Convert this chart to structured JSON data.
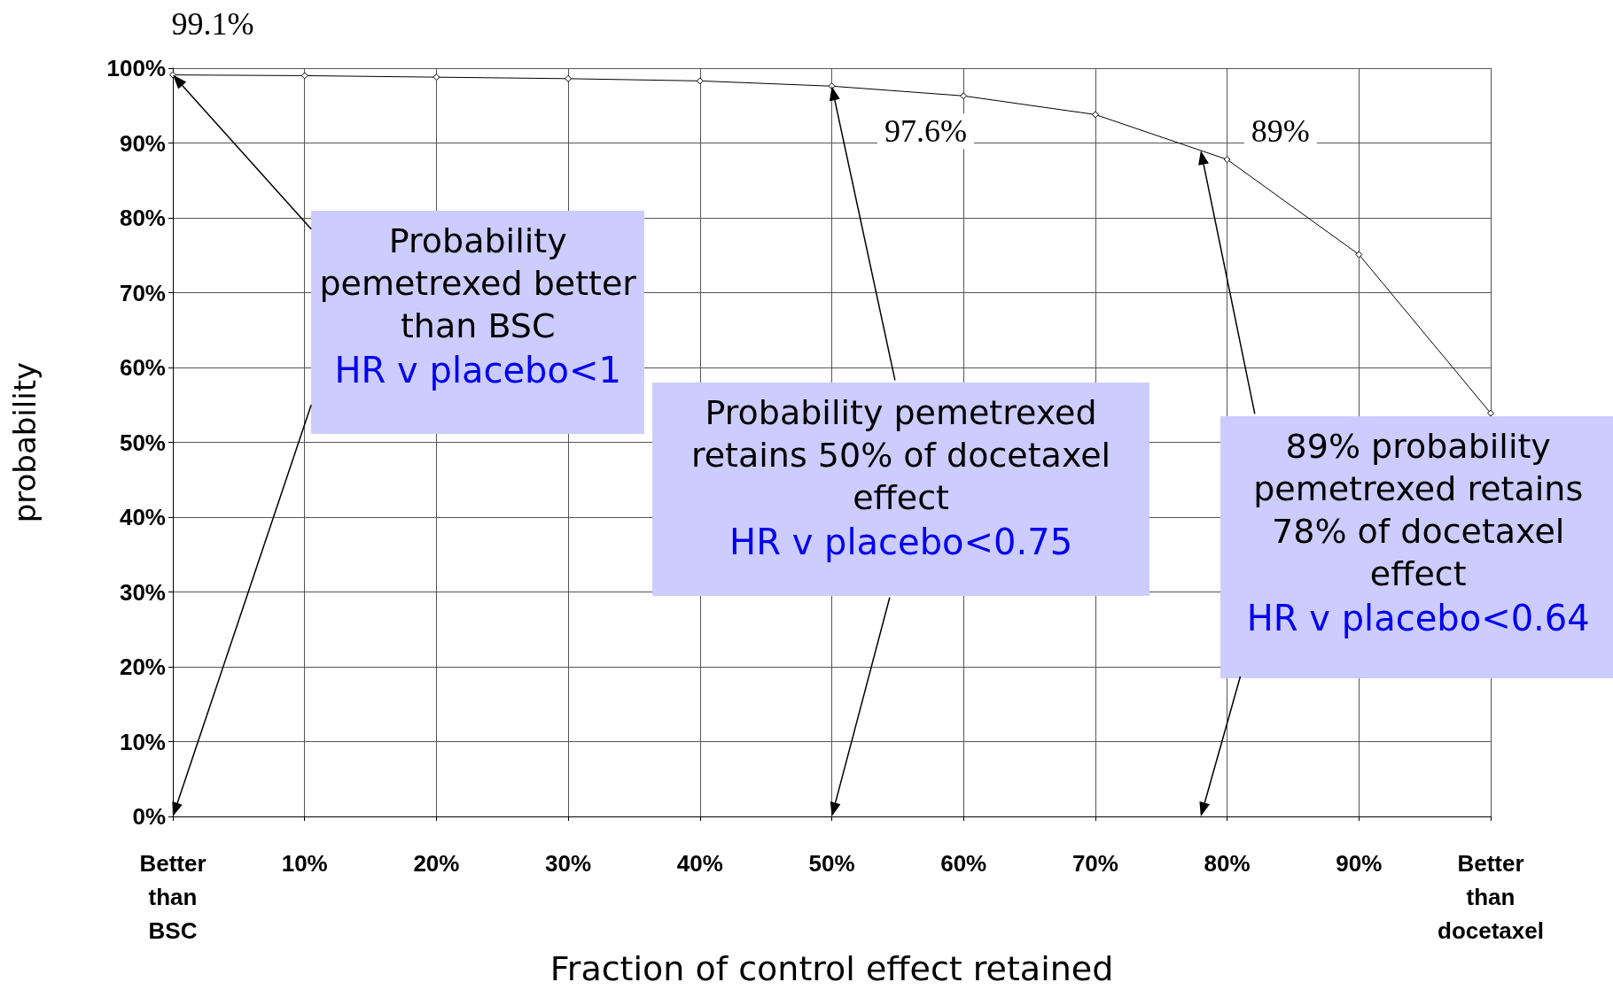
{
  "chart_data": {
    "type": "line",
    "xlabel": "Fraction of control effect retained",
    "ylabel": "probability",
    "x": [
      0,
      10,
      20,
      30,
      40,
      50,
      60,
      70,
      80,
      90,
      100
    ],
    "series": [
      {
        "color": "#000000",
        "values": [
          99.1,
          99.0,
          98.8,
          98.6,
          98.3,
          97.6,
          96.3,
          93.8,
          87.8,
          75.1,
          53.9
        ]
      }
    ],
    "xlim": [
      0,
      100
    ],
    "xticks": [
      {
        "value": 0,
        "label": "Better than BSC"
      },
      {
        "value": 10,
        "label": "10%"
      },
      {
        "value": 20,
        "label": "20%"
      },
      {
        "value": 30,
        "label": "30%"
      },
      {
        "value": 40,
        "label": "40%"
      },
      {
        "value": 50,
        "label": "50%"
      },
      {
        "value": 60,
        "label": "60%"
      },
      {
        "value": 70,
        "label": "70%"
      },
      {
        "value": 80,
        "label": "80%"
      },
      {
        "value": 90,
        "label": "90%"
      },
      {
        "value": 100,
        "label": "Better than docetaxel"
      }
    ],
    "ylim": [
      0,
      100
    ],
    "yticks": [
      {
        "value": 0,
        "label": "0%"
      },
      {
        "value": 10,
        "label": "10%"
      },
      {
        "value": 20,
        "label": "20%"
      },
      {
        "value": 30,
        "label": "30%"
      },
      {
        "value": 40,
        "label": "40%"
      },
      {
        "value": 50,
        "label": "50%"
      },
      {
        "value": 60,
        "label": "60%"
      },
      {
        "value": 70,
        "label": "70%"
      },
      {
        "value": 80,
        "label": "80%"
      },
      {
        "value": 90,
        "label": "90%"
      },
      {
        "value": 100,
        "label": "100%"
      }
    ],
    "annotations": [
      {
        "text": "99.1%",
        "x": 0,
        "y": 99.1
      },
      {
        "text": "97.6%",
        "x": 50,
        "y": 97.6
      },
      {
        "text": "89%",
        "x": 78,
        "y": 89
      },
      "Probability pemetrexed better than BSC",
      "HR v placebo<1",
      "Probability pemetrexed retains 50% of docetaxel effect",
      "HR v placebo<0.75",
      "89% probability pemetrexed retains 78% of docetaxel effect",
      "HR v placebo<0.64"
    ],
    "grid": true,
    "marker": "diamond",
    "line_style": "solid"
  }
}
